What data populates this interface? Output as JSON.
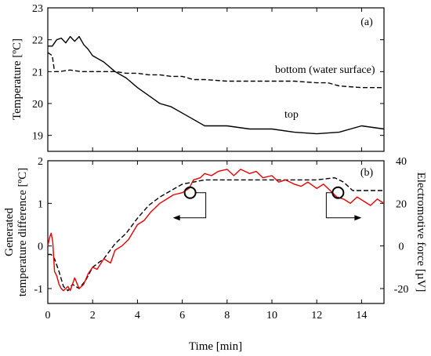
{
  "chart_data": [
    {
      "type": "line",
      "panel_label": "(a)",
      "xlim": [
        0,
        15
      ],
      "ylim": [
        18.5,
        23
      ],
      "xticks": [
        0,
        2,
        4,
        6,
        8,
        10,
        12,
        14
      ],
      "yticks": [
        19,
        20,
        21,
        22,
        23
      ],
      "xlabel": "",
      "ylabel": "Temperature [ºC]",
      "grid": false,
      "series": [
        {
          "name": "bottom (water surface)",
          "style": "dashed",
          "color": "#000000",
          "x": [
            0,
            0.2,
            0.3,
            0.5,
            1,
            1.5,
            2,
            2.5,
            3,
            3.5,
            4,
            4.5,
            5,
            5.5,
            6,
            6.5,
            7,
            8,
            9,
            10,
            11,
            12,
            12.5,
            13,
            14,
            15
          ],
          "y": [
            21.6,
            21.5,
            21.0,
            21.0,
            21.05,
            21.0,
            21.0,
            21.0,
            21.0,
            20.95,
            20.95,
            20.9,
            20.9,
            20.85,
            20.85,
            20.75,
            20.75,
            20.7,
            20.7,
            20.7,
            20.7,
            20.65,
            20.65,
            20.55,
            20.5,
            20.5
          ]
        },
        {
          "name": "top",
          "style": "solid",
          "color": "#000000",
          "x": [
            0,
            0.2,
            0.4,
            0.6,
            0.8,
            1.0,
            1.2,
            1.4,
            1.6,
            1.8,
            2.0,
            2.5,
            3.0,
            3.5,
            4.0,
            4.5,
            5.0,
            5.5,
            6.0,
            6.5,
            7.0,
            8.0,
            9.0,
            10.0,
            11.0,
            12.0,
            13.0,
            14.0,
            15.0
          ],
          "y": [
            21.8,
            21.8,
            22.0,
            22.05,
            21.9,
            22.1,
            21.95,
            22.1,
            21.85,
            21.7,
            21.5,
            21.3,
            21.0,
            20.8,
            20.5,
            20.25,
            20.0,
            19.9,
            19.7,
            19.5,
            19.3,
            19.3,
            19.2,
            19.2,
            19.1,
            19.05,
            19.1,
            19.3,
            19.2
          ]
        }
      ]
    },
    {
      "type": "line",
      "panel_label": "(b)",
      "xlim": [
        0,
        15
      ],
      "ylim": [
        -1.35,
        2
      ],
      "y2lim": [
        -27,
        40
      ],
      "xticks": [
        0,
        2,
        4,
        6,
        8,
        10,
        12,
        14
      ],
      "yticks": [
        -1,
        0,
        1,
        2
      ],
      "y2ticks": [
        -20,
        0,
        20,
        40
      ],
      "xlabel": "Time [min]",
      "ylabel_line1": "Generated",
      "ylabel_line2": "temperature difference [ºC]",
      "y2label": "Electromotive force [µV]",
      "grid": false,
      "series": [
        {
          "name": "",
          "style": "dashed",
          "color": "#000000",
          "axis": "left",
          "x": [
            0,
            0.15,
            0.3,
            0.5,
            0.7,
            0.9,
            1.1,
            1.4,
            1.7,
            2.0,
            2.5,
            3.0,
            3.5,
            4.0,
            4.5,
            5.0,
            5.5,
            6.0,
            6.5,
            7.0,
            8.0,
            9.0,
            10.0,
            11.0,
            12.0,
            12.8,
            13.2,
            13.6,
            14.0,
            15.0
          ],
          "y": [
            -0.2,
            -0.2,
            -0.3,
            -0.6,
            -0.95,
            -1.05,
            -0.9,
            -1.0,
            -0.8,
            -0.5,
            -0.3,
            0.05,
            0.3,
            0.65,
            0.95,
            1.15,
            1.3,
            1.45,
            1.5,
            1.55,
            1.55,
            1.55,
            1.55,
            1.55,
            1.55,
            1.6,
            1.5,
            1.3,
            1.3,
            1.3
          ]
        },
        {
          "name": "",
          "style": "solid",
          "color": "#e60000",
          "axis": "right",
          "x": [
            0,
            0.08,
            0.15,
            0.22,
            0.3,
            0.4,
            0.5,
            0.6,
            0.7,
            0.8,
            0.9,
            1.0,
            1.2,
            1.4,
            1.6,
            1.8,
            2.0,
            2.2,
            2.5,
            2.8,
            3.0,
            3.3,
            3.6,
            4.0,
            4.3,
            4.6,
            5.0,
            5.3,
            5.6,
            6.0,
            6.3,
            6.5,
            6.8,
            7.0,
            7.3,
            7.6,
            8.0,
            8.3,
            8.6,
            9.0,
            9.3,
            9.6,
            10.0,
            10.3,
            10.6,
            11.0,
            11.3,
            11.6,
            12.0,
            12.3,
            12.6,
            12.9,
            13.2,
            13.5,
            13.8,
            14.1,
            14.4,
            14.7,
            15.0
          ],
          "y": [
            0,
            4,
            6,
            2,
            -12,
            -14,
            -18,
            -20,
            -21,
            -20,
            -19,
            -21,
            -15,
            -20,
            -18,
            -13,
            -10,
            -11,
            -6,
            -8,
            -2,
            0,
            3,
            10,
            12,
            16,
            20,
            22,
            24,
            25,
            27,
            31,
            32,
            34,
            33,
            35,
            36,
            33,
            36,
            34,
            35,
            32,
            33,
            30,
            31,
            29,
            28,
            30,
            27,
            29,
            26,
            23,
            22,
            20,
            23,
            21,
            19,
            22,
            20
          ]
        }
      ],
      "annotations": [
        {
          "type": "circle-arrow",
          "at": [
            6.35,
            1.25
          ],
          "direction": "left"
        },
        {
          "type": "circle-arrow",
          "at": [
            12.95,
            1.25
          ],
          "direction": "right"
        }
      ]
    }
  ]
}
